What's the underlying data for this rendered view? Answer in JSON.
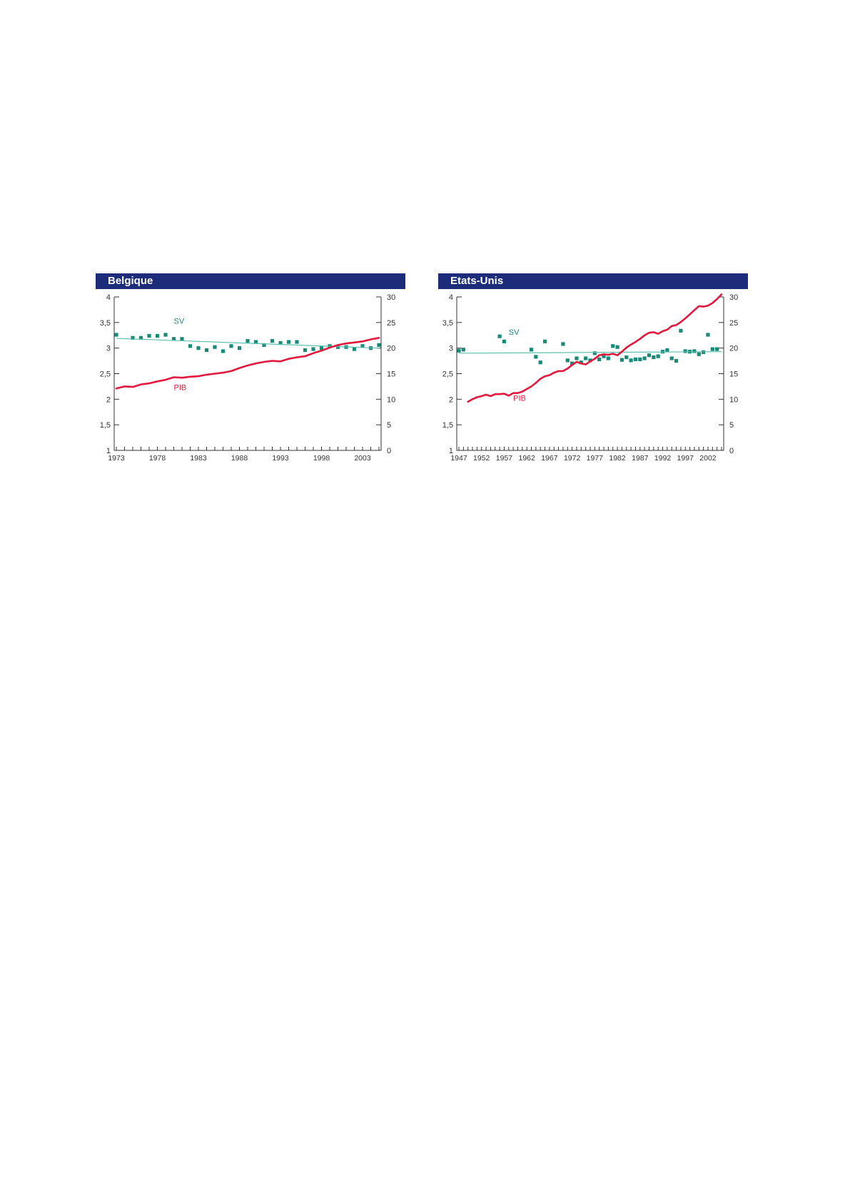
{
  "colors": {
    "header": "#1d2c7a",
    "sv": "#1a8a78",
    "sv_trend": "#5cc0b0",
    "pib": "#e2183d",
    "axis": "#333333"
  },
  "chart_data": [
    {
      "type": "line",
      "title": "Belgique",
      "x_ticks": [
        "1973",
        "1978",
        "1983",
        "1988",
        "1993",
        "1998",
        "2003"
      ],
      "x_range": [
        1973,
        2005
      ],
      "y_left": {
        "ticks": [
          "1",
          "1,5",
          "2",
          "2,5",
          "3",
          "3,5",
          "4"
        ],
        "range": [
          1,
          4
        ]
      },
      "y_right": {
        "ticks": [
          "0",
          "5",
          "10",
          "15",
          "20",
          "25",
          "30"
        ],
        "range": [
          0,
          30
        ]
      },
      "series": [
        {
          "name": "SV",
          "kind": "scatter",
          "axis": "right",
          "x": [
            1973,
            1975,
            1976,
            1977,
            1978,
            1979,
            1980,
            1981,
            1982,
            1983,
            1984,
            1985,
            1986,
            1987,
            1988,
            1989,
            1990,
            1991,
            1992,
            1993,
            1994,
            1995,
            1996,
            1997,
            1998,
            1999,
            2000,
            2001,
            2002,
            2003,
            2004,
            2005
          ],
          "y": [
            22.6,
            22.0,
            22.0,
            22.4,
            22.4,
            22.6,
            21.8,
            21.8,
            20.4,
            20.0,
            19.6,
            20.2,
            19.4,
            20.4,
            20.0,
            21.4,
            21.2,
            20.6,
            21.4,
            21.0,
            21.2,
            21.2,
            19.6,
            19.8,
            20.0,
            20.4,
            20.2,
            20.2,
            19.8,
            20.4,
            20.0,
            20.6
          ]
        },
        {
          "name": "",
          "kind": "trend",
          "axis": "right",
          "x": [
            1973,
            2005
          ],
          "y": [
            21.9,
            20.0
          ]
        },
        {
          "name": "PIB",
          "kind": "line",
          "axis": "left",
          "x": [
            1973,
            1974,
            1975,
            1976,
            1977,
            1978,
            1979,
            1980,
            1981,
            1982,
            1983,
            1984,
            1985,
            1986,
            1987,
            1988,
            1989,
            1990,
            1991,
            1992,
            1993,
            1994,
            1995,
            1996,
            1997,
            1998,
            1999,
            2000,
            2001,
            2002,
            2003,
            2004,
            2005
          ],
          "y": [
            2.21,
            2.25,
            2.24,
            2.29,
            2.31,
            2.35,
            2.38,
            2.43,
            2.42,
            2.44,
            2.45,
            2.48,
            2.5,
            2.52,
            2.55,
            2.61,
            2.66,
            2.7,
            2.73,
            2.75,
            2.74,
            2.79,
            2.82,
            2.84,
            2.9,
            2.95,
            3.01,
            3.06,
            3.09,
            3.11,
            3.13,
            3.17,
            3.2
          ]
        }
      ],
      "annotations": [
        {
          "text": "SV",
          "x": 1980,
          "y_right": 24.8,
          "color": "#1a8a78"
        },
        {
          "text": "PIB",
          "x": 1980,
          "y_left": 2.18,
          "color": "#e2183d"
        }
      ]
    },
    {
      "type": "line",
      "title": "Etats-Unis",
      "x_ticks": [
        "1947",
        "1952",
        "1957",
        "1962",
        "1967",
        "1972",
        "1977",
        "1982",
        "1987",
        "1992",
        "1997",
        "2002"
      ],
      "x_range": [
        1947,
        2005
      ],
      "y_left": {
        "ticks": [
          "1",
          "1,5",
          "2",
          "2,5",
          "3",
          "3,5",
          "4"
        ],
        "range": [
          1,
          4
        ]
      },
      "y_right": {
        "ticks": [
          "0",
          "5",
          "10",
          "15",
          "20",
          "25",
          "30"
        ],
        "range": [
          0,
          30
        ]
      },
      "series": [
        {
          "name": "SV",
          "kind": "scatter",
          "axis": "right",
          "x": [
            1947,
            1948,
            1956,
            1957,
            1963,
            1964,
            1965,
            1966,
            1970,
            1971,
            1972,
            1973,
            1974,
            1975,
            1976,
            1977,
            1978,
            1979,
            1980,
            1981,
            1982,
            1983,
            1984,
            1985,
            1986,
            1987,
            1988,
            1989,
            1990,
            1991,
            1992,
            1993,
            1994,
            1995,
            1996,
            1997,
            1998,
            1999,
            2000,
            2001,
            2002,
            2003,
            2004
          ],
          "y": [
            19.5,
            19.7,
            22.3,
            21.3,
            19.7,
            18.3,
            17.2,
            21.3,
            20.8,
            17.6,
            17.0,
            18.0,
            17.2,
            18.0,
            17.6,
            19.0,
            17.8,
            18.4,
            18.0,
            20.4,
            20.2,
            17.7,
            18.2,
            17.6,
            17.8,
            17.8,
            18.0,
            18.6,
            18.2,
            18.4,
            19.3,
            19.6,
            18.0,
            17.5,
            23.4,
            19.4,
            19.3,
            19.4,
            18.8,
            19.2,
            22.6,
            19.8,
            19.8
          ]
        },
        {
          "name": "",
          "kind": "trend",
          "axis": "right",
          "x": [
            1947,
            2005
          ],
          "y": [
            19.0,
            19.3
          ]
        },
        {
          "name": "PIB",
          "kind": "line",
          "axis": "left",
          "x": [
            1949,
            1950,
            1951,
            1952,
            1953,
            1954,
            1955,
            1956,
            1957,
            1958,
            1959,
            1960,
            1961,
            1962,
            1963,
            1964,
            1965,
            1966,
            1967,
            1968,
            1969,
            1970,
            1971,
            1972,
            1973,
            1974,
            1975,
            1976,
            1977,
            1978,
            1979,
            1980,
            1981,
            1982,
            1983,
            1984,
            1985,
            1986,
            1987,
            1988,
            1989,
            1990,
            1991,
            1992,
            1993,
            1994,
            1995,
            1996,
            1997,
            1998,
            1999,
            2000,
            2001,
            2002,
            2003,
            2004,
            2005
          ],
          "y": [
            1.95,
            2.0,
            2.04,
            2.06,
            2.09,
            2.06,
            2.1,
            2.1,
            2.11,
            2.07,
            2.12,
            2.12,
            2.15,
            2.2,
            2.25,
            2.32,
            2.4,
            2.45,
            2.47,
            2.52,
            2.55,
            2.55,
            2.6,
            2.67,
            2.73,
            2.7,
            2.68,
            2.74,
            2.79,
            2.86,
            2.88,
            2.87,
            2.89,
            2.86,
            2.93,
            3.01,
            3.07,
            3.12,
            3.18,
            3.25,
            3.3,
            3.31,
            3.28,
            3.33,
            3.36,
            3.43,
            3.45,
            3.51,
            3.58,
            3.66,
            3.74,
            3.82,
            3.81,
            3.83,
            3.88,
            3.96,
            4.05
          ]
        }
      ],
      "annotations": [
        {
          "text": "SV",
          "x": 1958,
          "y_right": 22.6,
          "color": "#1a8a78"
        },
        {
          "text": "PIB",
          "x": 1959,
          "y_left": 1.97,
          "color": "#e2183d"
        }
      ]
    }
  ]
}
